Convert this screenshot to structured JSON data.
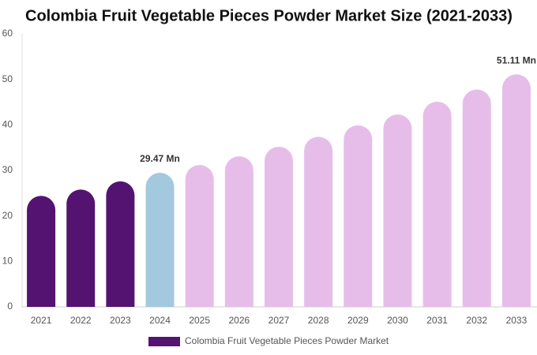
{
  "chart_data": {
    "type": "bar",
    "title": "Colombia Fruit Vegetable Pieces Powder Market Size (2021-2033)",
    "categories": [
      "2021",
      "2022",
      "2023",
      "2024",
      "2025",
      "2026",
      "2027",
      "2028",
      "2029",
      "2030",
      "2031",
      "2032",
      "2033"
    ],
    "series": [
      {
        "name": "Colombia Fruit Vegetable Pieces Powder Market",
        "color": "#541370",
        "values": [
          24.4,
          25.8,
          27.6,
          29.47,
          31.2,
          33.1,
          35.2,
          37.4,
          39.9,
          42.3,
          45.1,
          47.8,
          51.11
        ],
        "colors": [
          "#541370",
          "#541370",
          "#541370",
          "#a3c9de",
          "#e6bde9",
          "#e6bde9",
          "#e6bde9",
          "#e6bde9",
          "#e6bde9",
          "#e6bde9",
          "#e6bde9",
          "#e6bde9",
          "#e6bde9"
        ],
        "value_labels": [
          null,
          null,
          null,
          "29.47 Mn",
          null,
          null,
          null,
          null,
          null,
          null,
          null,
          null,
          "51.11 Mn"
        ]
      }
    ],
    "ylim": [
      0,
      60
    ],
    "yticks": [
      0,
      10,
      20,
      30,
      40,
      50,
      60
    ],
    "grid": false
  }
}
